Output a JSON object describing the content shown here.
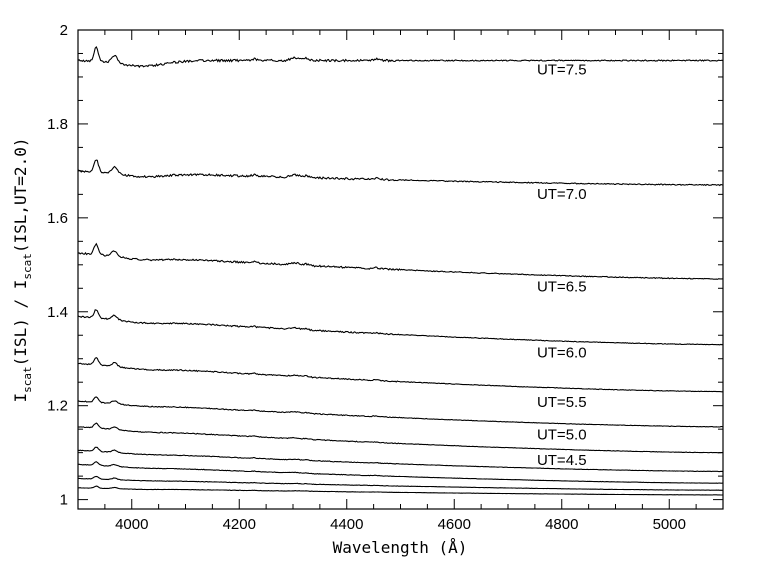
{
  "chart_data": {
    "type": "line",
    "title": "",
    "xlabel": "Wavelength (Å)",
    "ylabel_parts": [
      "I",
      "scat",
      "(ISL) / I",
      "scat",
      "(ISL,UT=2.0)"
    ],
    "xlim": [
      3900,
      5100
    ],
    "ylim": [
      0.98,
      2.0
    ],
    "x_ticks": [
      4000,
      4200,
      4400,
      4600,
      4800,
      5000
    ],
    "x_tick_labels": [
      "4000",
      "4200",
      "4400",
      "4600",
      "4800",
      "5000"
    ],
    "y_ticks": [
      1.0,
      1.2,
      1.4,
      1.6,
      1.8,
      2.0
    ],
    "y_tick_labels": [
      "1",
      "1.2",
      "1.4",
      "1.6",
      "1.8",
      "2"
    ],
    "grid": false,
    "series": [
      {
        "name": "UT=7.5",
        "start": 1.935,
        "end": 1.935,
        "dip": 0.012,
        "amp": 1.0,
        "label_x": 4800,
        "label_y": 1.905
      },
      {
        "name": "UT=7.0",
        "start": 1.7,
        "end": 1.67,
        "dip": 0.008,
        "amp": 0.9,
        "label_x": 4800,
        "label_y": 1.64
      },
      {
        "name": "UT=6.5",
        "start": 1.525,
        "end": 1.47,
        "dip": 0.006,
        "amp": 0.75,
        "label_x": 4800,
        "label_y": 1.443
      },
      {
        "name": "UT=6.0",
        "start": 1.39,
        "end": 1.33,
        "dip": 0.005,
        "amp": 0.6,
        "label_x": 4800,
        "label_y": 1.303
      },
      {
        "name": "UT=5.5",
        "start": 1.29,
        "end": 1.23,
        "dip": 0.004,
        "amp": 0.5,
        "label_x": 4800,
        "label_y": 1.197
      },
      {
        "name": "UT=5.0",
        "start": 1.21,
        "end": 1.155,
        "dip": 0.003,
        "amp": 0.4,
        "label_x": 4800,
        "label_y": 1.128
      },
      {
        "name": "UT=4.5",
        "start": 1.155,
        "end": 1.1,
        "dip": 0.003,
        "amp": 0.35,
        "label_x": 4800,
        "label_y": 1.074
      },
      {
        "name": "",
        "start": 1.105,
        "end": 1.06,
        "dip": 0.002,
        "amp": 0.3
      },
      {
        "name": "",
        "start": 1.075,
        "end": 1.035,
        "dip": 0.002,
        "amp": 0.25
      },
      {
        "name": "",
        "start": 1.045,
        "end": 1.02,
        "dip": 0.001,
        "amp": 0.2
      },
      {
        "name": "",
        "start": 1.025,
        "end": 1.01,
        "dip": 0.001,
        "amp": 0.15
      }
    ]
  }
}
